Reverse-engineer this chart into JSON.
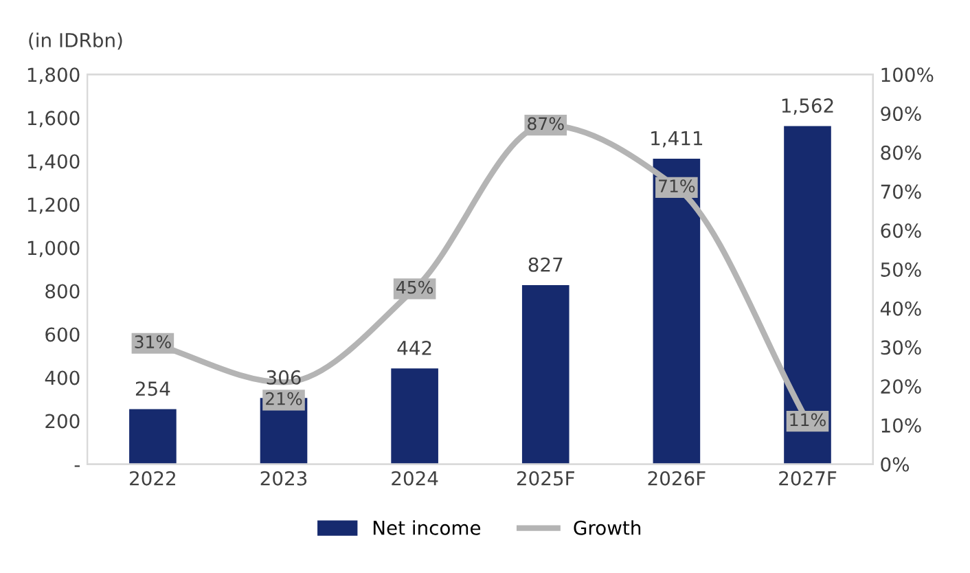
{
  "chart_data": {
    "type": "bar",
    "ylabel": "(in IDRbn)",
    "categories": [
      "2022",
      "2023",
      "2024",
      "2025F",
      "2026F",
      "2027F"
    ],
    "series": [
      {
        "name": "Net income",
        "type": "bar",
        "color": "#162a6e",
        "values": [
          254,
          306,
          442,
          827,
          1411,
          1562
        ],
        "value_labels": [
          "254",
          "306",
          "442",
          "827",
          "1,411",
          "1,562"
        ]
      },
      {
        "name": "Growth",
        "type": "line",
        "axis": "y2",
        "marker": "square",
        "color": "#b4b4b4",
        "values": [
          31,
          21,
          45,
          87,
          71,
          11
        ],
        "value_labels": [
          "31%",
          "21%",
          "45%",
          "87%",
          "71%",
          "11%"
        ]
      }
    ],
    "ylim": [
      0,
      1800
    ],
    "yticks": [
      {
        "value": 0,
        "label": "-"
      },
      {
        "value": 200,
        "label": "200"
      },
      {
        "value": 400,
        "label": "400"
      },
      {
        "value": 600,
        "label": "600"
      },
      {
        "value": 800,
        "label": "800"
      },
      {
        "value": 1000,
        "label": "1,000"
      },
      {
        "value": 1200,
        "label": "1,200"
      },
      {
        "value": 1400,
        "label": "1,400"
      },
      {
        "value": 1600,
        "label": "1,600"
      },
      {
        "value": 1800,
        "label": "1,800"
      }
    ],
    "y2lim": [
      0,
      100
    ],
    "y2ticks": [
      {
        "value": 0,
        "label": "0%"
      },
      {
        "value": 10,
        "label": "10%"
      },
      {
        "value": 20,
        "label": "20%"
      },
      {
        "value": 30,
        "label": "30%"
      },
      {
        "value": 40,
        "label": "40%"
      },
      {
        "value": 50,
        "label": "50%"
      },
      {
        "value": 60,
        "label": "60%"
      },
      {
        "value": 70,
        "label": "70%"
      },
      {
        "value": 80,
        "label": "80%"
      },
      {
        "value": 90,
        "label": "90%"
      },
      {
        "value": 100,
        "label": "100%"
      }
    ],
    "grid": false,
    "legend": "bottom",
    "line_style": "solid"
  }
}
